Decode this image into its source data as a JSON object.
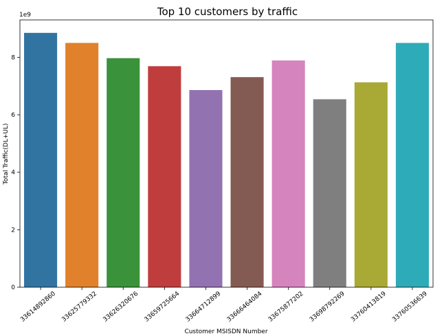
{
  "chart_data": {
    "type": "bar",
    "title": "Top 10 customers by traffic",
    "xlabel": "Customer MSISDN Number",
    "ylabel": "Total Traffic(DL+UL)",
    "y_offset_label": "1e9",
    "y_scale": 1000000000,
    "ylim": [
      0,
      9.3
    ],
    "yticks": [
      0,
      2,
      4,
      6,
      8
    ],
    "categories": [
      "33614892860",
      "33625779332",
      "33626320676",
      "33659725664",
      "33664712899",
      "33666464084",
      "33675877202",
      "33698792269",
      "33760413819",
      "33760536639"
    ],
    "values": [
      8.85,
      8.5,
      7.97,
      7.69,
      6.86,
      7.31,
      7.89,
      6.54,
      7.13,
      8.5
    ],
    "colors": [
      "#3274a1",
      "#e1812c",
      "#3a923a",
      "#c03d3e",
      "#9372b2",
      "#845b53",
      "#d684bd",
      "#7f7f7f",
      "#a9aa35",
      "#2eabb8"
    ],
    "grid": false,
    "legend": "none"
  }
}
